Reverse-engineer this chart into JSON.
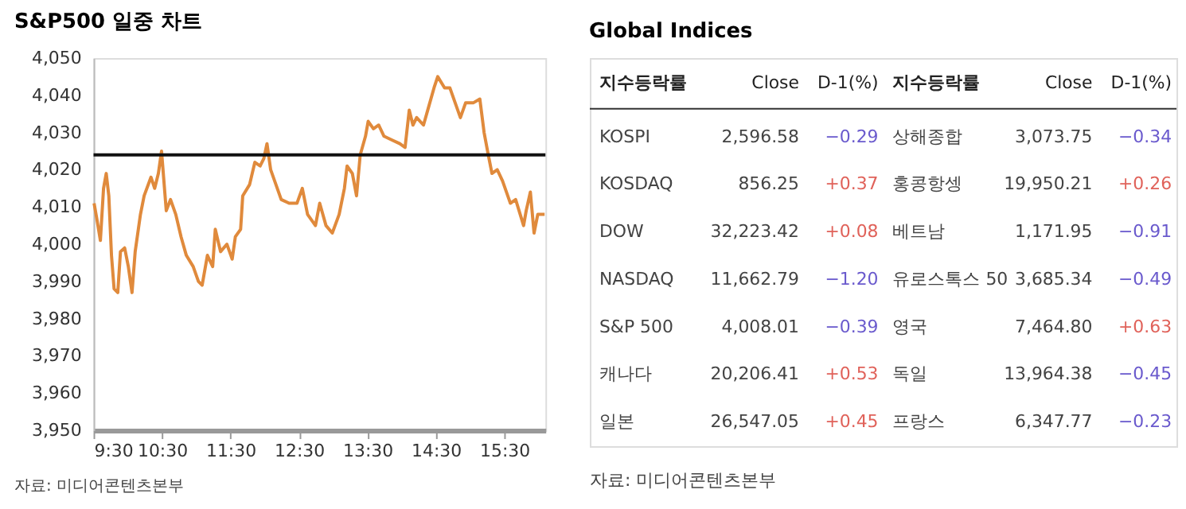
{
  "chart_data": [
    {
      "type": "line",
      "title": "S&P500 일중 차트",
      "x": [
        9.508,
        9.546,
        9.6,
        9.646,
        9.685,
        9.723,
        9.762,
        9.8,
        9.854,
        9.893,
        9.954,
        10.008,
        10.062,
        10.108,
        10.185,
        10.239,
        10.339,
        10.393,
        10.447,
        10.493,
        10.562,
        10.624,
        10.701,
        10.778,
        10.855,
        10.955,
        11.032,
        11.086,
        11.163,
        11.24,
        11.278,
        11.355,
        11.448,
        11.525,
        11.571,
        11.648,
        11.679,
        11.779,
        11.856,
        11.933,
        11.987,
        12.033,
        12.087,
        12.164,
        12.241,
        12.356,
        12.471,
        12.549,
        12.626,
        12.741,
        12.803,
        12.895,
        12.987,
        13.087,
        13.164,
        13.203,
        13.28,
        13.341,
        13.395,
        13.472,
        13.511,
        13.588,
        13.665,
        13.742,
        13.857,
        13.973,
        14.05,
        14.111,
        14.165,
        14.219,
        14.319,
        14.396,
        14.473,
        14.527,
        14.627,
        14.704,
        14.781,
        14.858,
        14.935,
        15.05,
        15.142,
        15.204,
        15.265,
        15.319,
        15.396,
        15.473,
        15.588,
        15.665,
        15.781,
        15.819,
        15.88,
        15.934,
        15.988,
        16.088
      ],
      "series": [
        {
          "color": "#e08a3c",
          "values": [
            4011,
            4007,
            4001,
            4015,
            4019,
            4013,
            3997,
            3988,
            3987,
            3998,
            3999,
            3994,
            3987,
            3998,
            4008,
            4013,
            4018,
            4015,
            4019,
            4025,
            4009,
            4012,
            4008,
            4002,
            3997,
            3994,
            3990,
            3989,
            3997,
            3994,
            4004,
            3998,
            4000,
            3996,
            4002,
            4004,
            4013,
            4016,
            4022,
            4021,
            4023,
            4027,
            4020,
            4016,
            4012,
            4011,
            4011,
            4015,
            4008,
            4005,
            4011,
            4005,
            4003,
            4008,
            4015,
            4021,
            4019,
            4013,
            4024,
            4029,
            4033,
            4031,
            4032,
            4029,
            4028,
            4027,
            4026,
            4036,
            4032,
            4034,
            4032,
            4037,
            4042,
            4045,
            4042,
            4042,
            4038,
            4034,
            4038,
            4038,
            4039,
            4030,
            4024,
            4019,
            4020,
            4017,
            4011,
            4012,
            4005,
            4009,
            4014,
            4003,
            4008,
            4008
          ]
        }
      ],
      "xlim": [
        9.5,
        16.1
      ],
      "xticks": [
        {
          "value": 9.5,
          "label": "9:30"
        },
        {
          "value": 10.5,
          "label": "10:30"
        },
        {
          "value": 11.5,
          "label": "11:30"
        },
        {
          "value": 12.5,
          "label": "12:30"
        },
        {
          "value": 13.5,
          "label": "13:30"
        },
        {
          "value": 14.5,
          "label": "14:30"
        },
        {
          "value": 15.5,
          "label": "15:30"
        }
      ],
      "ylim": [
        3950,
        4050
      ],
      "yticks": [
        {
          "value": 3950,
          "label": "3,950"
        },
        {
          "value": 3960,
          "label": "3,960"
        },
        {
          "value": 3970,
          "label": "3,970"
        },
        {
          "value": 3980,
          "label": "3,980"
        },
        {
          "value": 3990,
          "label": "3,990"
        },
        {
          "value": 4000,
          "label": "4,000"
        },
        {
          "value": 4010,
          "label": "4,010"
        },
        {
          "value": 4020,
          "label": "4,020"
        },
        {
          "value": 4030,
          "label": "4,030"
        },
        {
          "value": 4040,
          "label": "4,040"
        },
        {
          "value": 4050,
          "label": "4,050"
        }
      ],
      "ref_lines": [
        {
          "axis": "y",
          "value": 4024,
          "color": "#111111"
        }
      ],
      "grid": false,
      "marker": "none",
      "line_style": "solid",
      "annotations": [
        "자료: 미디어콘텐츠본부"
      ]
    },
    {
      "type": "other",
      "title": "Global Indices",
      "annotations": [
        "지수등락률",
        "Close",
        "D-1(%)",
        "지수등락률",
        "Close",
        "D-1(%)",
        "KOSPI",
        "2,596.58",
        "−0.29",
        "상해종합",
        "3,073.75",
        "−0.34",
        "KOSDAQ",
        "856.25",
        "+0.37",
        "홍콩항셍",
        "19,950.21",
        "+0.26",
        "DOW",
        "32,223.42",
        "+0.08",
        "베트남",
        "1,171.95",
        "−0.91",
        "NASDAQ",
        "11,662.79",
        "−1.20",
        "유로스톡스 50",
        "3,685.34",
        "−0.49",
        "S&P 500",
        "4,008.01",
        "−0.39",
        "영국",
        "7,464.80",
        "+0.63",
        "캐나다",
        "20,206.41",
        "+0.53",
        "독일",
        "13,964.38",
        "−0.45",
        "일본",
        "26,547.05",
        "+0.45",
        "프랑스",
        "6,347.77",
        "−0.23",
        "자료: 미디어콘텐츠본부"
      ],
      "colors": [
        "#222222",
        "#222222",
        "#222222",
        "#222222",
        "#222222",
        "#222222",
        "#444444",
        "#444444",
        "#6a5acd",
        "#444444",
        "#444444",
        "#6a5acd",
        "#444444",
        "#444444",
        "#e0625a",
        "#444444",
        "#444444",
        "#e0625a",
        "#444444",
        "#444444",
        "#e0625a",
        "#444444",
        "#444444",
        "#6a5acd",
        "#444444",
        "#444444",
        "#6a5acd",
        "#444444",
        "#444444",
        "#6a5acd",
        "#444444",
        "#444444",
        "#6a5acd",
        "#444444",
        "#444444",
        "#e0625a",
        "#444444",
        "#444444",
        "#e0625a",
        "#444444",
        "#444444",
        "#6a5acd",
        "#444444",
        "#444444",
        "#e0625a",
        "#444444",
        "#444444",
        "#6a5acd",
        "#444444"
      ]
    }
  ]
}
